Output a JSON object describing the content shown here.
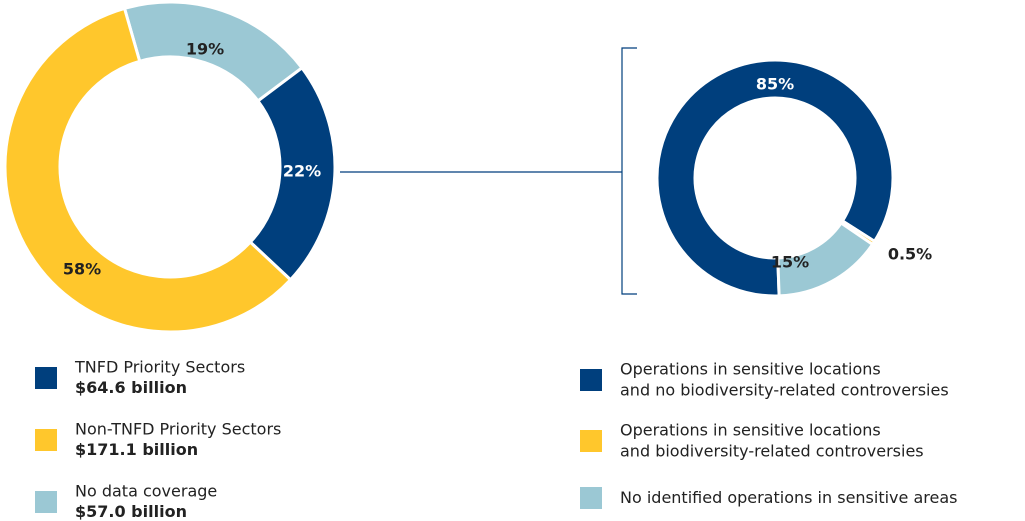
{
  "chart_data": [
    {
      "type": "pie",
      "donut": true,
      "categories": [
        "No data coverage",
        "TNFD Priority Sectors",
        "Non-TNFD Priority Sectors"
      ],
      "values": [
        19,
        22,
        58
      ],
      "value_labels": [
        "19%",
        "22%",
        "58%"
      ],
      "amounts": [
        "$57.0 billion",
        "$64.6 billion",
        "$171.1 billion"
      ],
      "colors": [
        "#9bc8d4",
        "#003f7d",
        "#ffc72c"
      ]
    },
    {
      "type": "pie",
      "donut": true,
      "categories": [
        "Operations in sensitive locations\nand no biodiversity-related controversies",
        "Operations in sensitive locations\nand biodiversity-related controversies",
        "No identified operations in sensitive areas"
      ],
      "values": [
        85,
        0.5,
        15
      ],
      "value_labels": [
        "85%",
        "0.5%",
        "15%"
      ],
      "colors": [
        "#003f7d",
        "#ffc72c",
        "#9bc8d4"
      ]
    }
  ]
}
